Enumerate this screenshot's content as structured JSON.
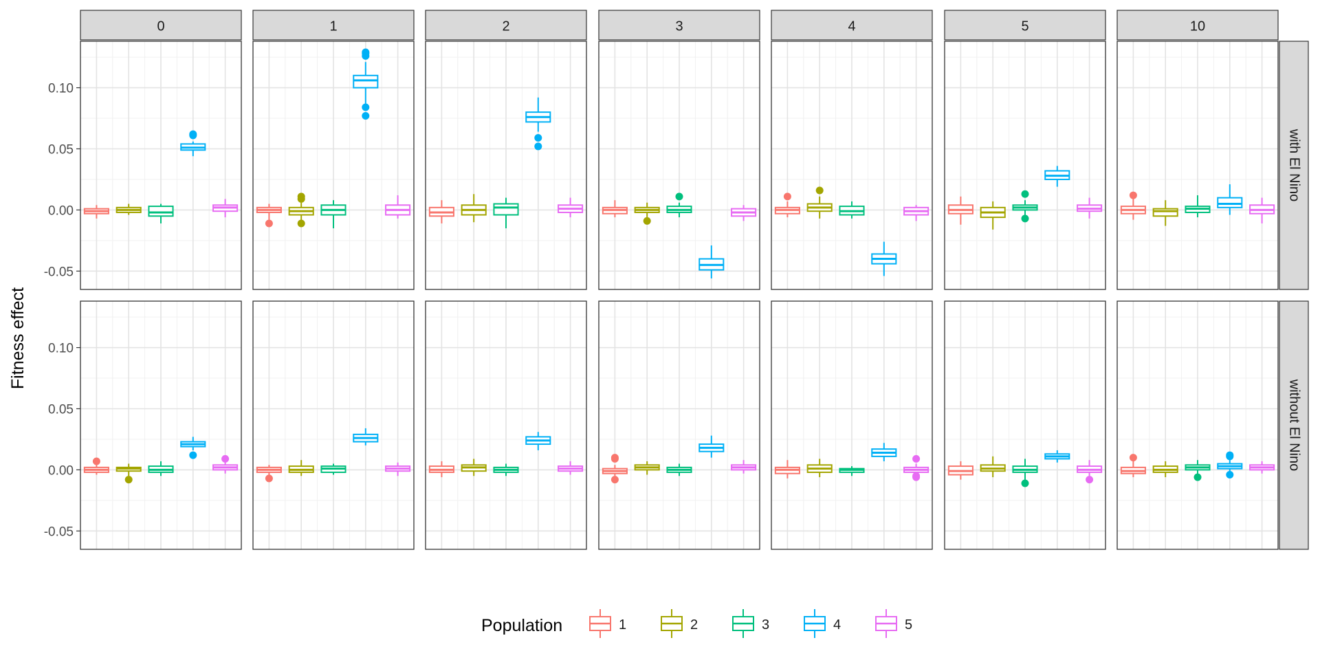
{
  "chart_data": {
    "type": "boxplot",
    "ylabel": "Fitness effect",
    "ylim": [
      -0.065,
      0.138
    ],
    "y_ticks": [
      -0.05,
      0.0,
      0.05,
      0.1
    ],
    "y_tick_labels": [
      "-0.05",
      "0.00",
      "0.05",
      "0.10"
    ],
    "column_facets": [
      "0",
      "1",
      "2",
      "3",
      "4",
      "5",
      "10"
    ],
    "row_facets": [
      "with El Nino",
      "without El Nino"
    ],
    "legend": {
      "title": "Population",
      "position": "bottom",
      "items": [
        {
          "label": "1",
          "color": "#F8766D"
        },
        {
          "label": "2",
          "color": "#A3A500"
        },
        {
          "label": "3",
          "color": "#00BF7D"
        },
        {
          "label": "4",
          "color": "#00B0F6"
        },
        {
          "label": "5",
          "color": "#E76BF3"
        }
      ]
    },
    "panels": [
      [
        [
          [
            -0.007,
            -0.003,
            -0.001,
            0.001,
            0.004,
            []
          ],
          [
            -0.004,
            -0.002,
            0.0,
            0.002,
            0.005,
            []
          ],
          [
            -0.011,
            -0.005,
            -0.002,
            0.003,
            0.005,
            []
          ],
          [
            0.044,
            0.049,
            0.051,
            0.054,
            0.056,
            [
              0.061,
              0.062
            ]
          ],
          [
            -0.006,
            -0.001,
            0.002,
            0.004,
            0.009,
            []
          ]
        ],
        [
          [
            -0.008,
            -0.002,
            0.0,
            0.002,
            0.005,
            [
              -0.011
            ]
          ],
          [
            -0.008,
            -0.004,
            -0.001,
            0.002,
            0.006,
            [
              0.009,
              0.011,
              -0.011
            ]
          ],
          [
            -0.015,
            -0.004,
            0.0,
            0.004,
            0.008,
            []
          ],
          [
            0.087,
            0.1,
            0.106,
            0.11,
            0.121,
            [
              0.126,
              0.128,
              0.129,
              0.084,
              0.077
            ]
          ],
          [
            -0.007,
            -0.004,
            0.0,
            0.004,
            0.012,
            []
          ]
        ],
        [
          [
            -0.011,
            -0.005,
            -0.002,
            0.002,
            0.008,
            []
          ],
          [
            -0.01,
            -0.004,
            0.0,
            0.004,
            0.013,
            []
          ],
          [
            -0.015,
            -0.004,
            0.002,
            0.005,
            0.01,
            []
          ],
          [
            0.064,
            0.072,
            0.076,
            0.08,
            0.092,
            [
              0.059,
              0.052
            ]
          ],
          [
            -0.006,
            -0.002,
            0.001,
            0.004,
            0.01,
            []
          ]
        ],
        [
          [
            -0.006,
            -0.003,
            0.0,
            0.002,
            0.008,
            []
          ],
          [
            -0.007,
            -0.002,
            0.0,
            0.002,
            0.006,
            [
              -0.009
            ]
          ],
          [
            -0.006,
            -0.002,
            0.0,
            0.003,
            0.006,
            [
              0.011
            ]
          ],
          [
            -0.056,
            -0.049,
            -0.045,
            -0.04,
            -0.029,
            []
          ],
          [
            -0.009,
            -0.005,
            -0.002,
            0.001,
            0.004,
            []
          ]
        ],
        [
          [
            -0.006,
            -0.003,
            0.0,
            0.002,
            0.007,
            [
              0.011
            ]
          ],
          [
            -0.007,
            -0.001,
            0.002,
            0.005,
            0.011,
            [
              0.016
            ]
          ],
          [
            -0.007,
            -0.004,
            -0.001,
            0.003,
            0.007,
            []
          ],
          [
            -0.054,
            -0.044,
            -0.04,
            -0.036,
            -0.026,
            []
          ],
          [
            -0.009,
            -0.004,
            -0.001,
            0.002,
            0.004,
            []
          ]
        ],
        [
          [
            -0.012,
            -0.003,
            0.0,
            0.004,
            0.011,
            []
          ],
          [
            -0.016,
            -0.006,
            -0.002,
            0.002,
            0.007,
            []
          ],
          [
            -0.004,
            0.0,
            0.002,
            0.004,
            0.008,
            [
              0.013,
              -0.007
            ]
          ],
          [
            0.019,
            0.025,
            0.028,
            0.032,
            0.036,
            []
          ],
          [
            -0.007,
            -0.001,
            0.001,
            0.004,
            0.01,
            []
          ]
        ],
        [
          [
            -0.008,
            -0.003,
            0.0,
            0.003,
            0.009,
            [
              0.012
            ]
          ],
          [
            -0.013,
            -0.005,
            -0.001,
            0.001,
            0.008,
            []
          ],
          [
            -0.006,
            -0.002,
            0.001,
            0.003,
            0.012,
            []
          ],
          [
            -0.004,
            0.002,
            0.005,
            0.01,
            0.021,
            []
          ],
          [
            -0.011,
            -0.003,
            0.0,
            0.004,
            0.01,
            []
          ]
        ]
      ],
      [
        [
          [
            -0.004,
            -0.002,
            0.0,
            0.002,
            0.004,
            [
              0.007
            ]
          ],
          [
            -0.005,
            -0.001,
            0.001,
            0.002,
            0.005,
            [
              -0.008
            ]
          ],
          [
            -0.005,
            -0.002,
            0.0,
            0.003,
            0.007,
            []
          ],
          [
            0.016,
            0.019,
            0.021,
            0.023,
            0.027,
            [
              0.012
            ]
          ],
          [
            -0.003,
            0.0,
            0.002,
            0.004,
            0.007,
            [
              0.009
            ]
          ]
        ],
        [
          [
            -0.005,
            -0.002,
            0.0,
            0.002,
            0.004,
            [
              -0.007
            ]
          ],
          [
            -0.005,
            -0.002,
            0.0,
            0.003,
            0.008,
            []
          ],
          [
            -0.004,
            -0.002,
            0.001,
            0.003,
            0.005,
            []
          ],
          [
            0.02,
            0.023,
            0.026,
            0.029,
            0.034,
            []
          ],
          [
            -0.005,
            -0.001,
            0.001,
            0.003,
            0.006,
            []
          ]
        ],
        [
          [
            -0.006,
            -0.002,
            0.0,
            0.003,
            0.007,
            []
          ],
          [
            -0.005,
            -0.001,
            0.002,
            0.004,
            0.009,
            []
          ],
          [
            -0.005,
            -0.002,
            0.0,
            0.002,
            0.005,
            []
          ],
          [
            0.016,
            0.021,
            0.024,
            0.027,
            0.031,
            []
          ],
          [
            -0.004,
            -0.001,
            0.001,
            0.003,
            0.007,
            []
          ]
        ],
        [
          [
            -0.005,
            -0.003,
            -0.001,
            0.001,
            0.004,
            [
              0.009,
              0.01,
              -0.008
            ]
          ],
          [
            -0.004,
            0.0,
            0.002,
            0.004,
            0.007,
            []
          ],
          [
            -0.005,
            -0.002,
            0.0,
            0.002,
            0.005,
            []
          ],
          [
            0.01,
            0.015,
            0.018,
            0.021,
            0.028,
            []
          ],
          [
            -0.003,
            0.0,
            0.002,
            0.004,
            0.008,
            []
          ]
        ],
        [
          [
            -0.007,
            -0.003,
            0.0,
            0.002,
            0.008,
            []
          ],
          [
            -0.006,
            -0.002,
            0.001,
            0.004,
            0.009,
            []
          ],
          [
            -0.005,
            -0.002,
            0.0,
            0.001,
            0.003,
            []
          ],
          [
            0.007,
            0.011,
            0.014,
            0.017,
            0.022,
            []
          ],
          [
            -0.004,
            -0.002,
            0.0,
            0.002,
            0.005,
            [
              0.009,
              -0.005,
              -0.006
            ]
          ]
        ],
        [
          [
            -0.008,
            -0.004,
            -0.001,
            0.003,
            0.007,
            []
          ],
          [
            -0.006,
            -0.001,
            0.001,
            0.004,
            0.011,
            []
          ],
          [
            -0.009,
            -0.002,
            0.0,
            0.003,
            0.009,
            [
              -0.011
            ]
          ],
          [
            0.006,
            0.009,
            0.011,
            0.013,
            0.016,
            []
          ],
          [
            -0.005,
            -0.002,
            0.0,
            0.003,
            0.008,
            [
              -0.008
            ]
          ]
        ],
        [
          [
            -0.006,
            -0.003,
            -0.001,
            0.002,
            0.007,
            [
              0.01
            ]
          ],
          [
            -0.006,
            -0.002,
            0.0,
            0.003,
            0.007,
            []
          ],
          [
            -0.004,
            0.0,
            0.002,
            0.004,
            0.008,
            [
              -0.006
            ]
          ],
          [
            -0.002,
            0.001,
            0.003,
            0.005,
            0.008,
            [
              0.011,
              0.012,
              -0.004
            ]
          ],
          [
            -0.003,
            0.0,
            0.002,
            0.004,
            0.007,
            []
          ]
        ]
      ]
    ]
  }
}
